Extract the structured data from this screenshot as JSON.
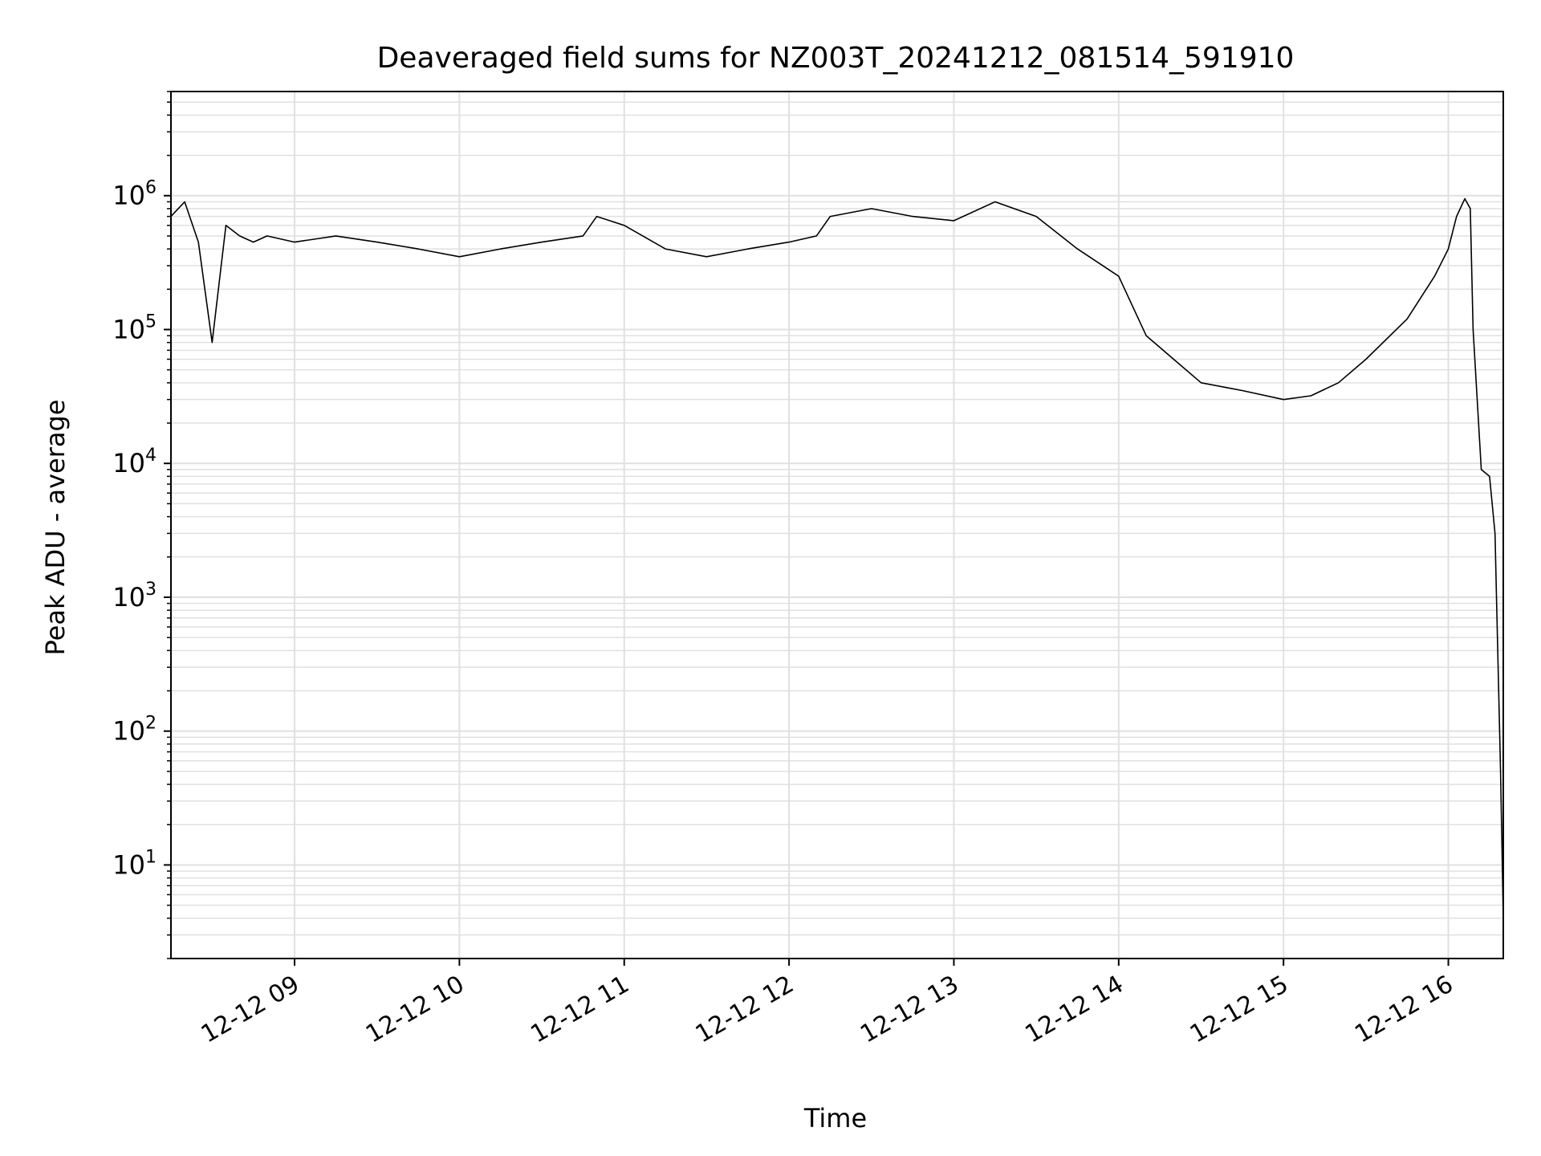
{
  "chart_data": {
    "type": "line",
    "title": "Deaveraged field sums for NZ003T_20241212_081514_591910",
    "xlabel": "Time",
    "ylabel": "Peak ADU - average",
    "yscale": "log",
    "ylim": [
      2,
      6000000
    ],
    "xlim": [
      "2024-12-12 08:15",
      "2024-12-12 16:20"
    ],
    "grid": true,
    "line_color": "#000000",
    "grid_color": "#e0e0e0",
    "x_ticks": [
      "12-12 09",
      "12-12 10",
      "12-12 11",
      "12-12 12",
      "12-12 13",
      "12-12 14",
      "12-12 15",
      "12-12 16"
    ],
    "y_ticks": [
      {
        "value": 10,
        "base": "10",
        "exp": "1"
      },
      {
        "value": 100,
        "base": "10",
        "exp": "2"
      },
      {
        "value": 1000,
        "base": "10",
        "exp": "3"
      },
      {
        "value": 10000,
        "base": "10",
        "exp": "4"
      },
      {
        "value": 100000,
        "base": "10",
        "exp": "5"
      },
      {
        "value": 1000000,
        "base": "10",
        "exp": "6"
      }
    ],
    "series": [
      {
        "x": [
          "2024-12-12 08:15",
          "2024-12-12 08:20",
          "2024-12-12 08:25",
          "2024-12-12 08:30",
          "2024-12-12 08:35",
          "2024-12-12 08:40",
          "2024-12-12 08:45",
          "2024-12-12 08:50",
          "2024-12-12 09:00",
          "2024-12-12 09:15",
          "2024-12-12 09:30",
          "2024-12-12 09:45",
          "2024-12-12 10:00",
          "2024-12-12 10:15",
          "2024-12-12 10:30",
          "2024-12-12 10:45",
          "2024-12-12 10:50",
          "2024-12-12 11:00",
          "2024-12-12 11:15",
          "2024-12-12 11:30",
          "2024-12-12 11:45",
          "2024-12-12 12:00",
          "2024-12-12 12:10",
          "2024-12-12 12:15",
          "2024-12-12 12:30",
          "2024-12-12 12:45",
          "2024-12-12 13:00",
          "2024-12-12 13:15",
          "2024-12-12 13:30",
          "2024-12-12 13:45",
          "2024-12-12 14:00",
          "2024-12-12 14:10",
          "2024-12-12 14:20",
          "2024-12-12 14:30",
          "2024-12-12 14:45",
          "2024-12-12 15:00",
          "2024-12-12 15:10",
          "2024-12-12 15:20",
          "2024-12-12 15:30",
          "2024-12-12 15:45",
          "2024-12-12 15:55",
          "2024-12-12 16:00",
          "2024-12-12 16:03",
          "2024-12-12 16:06",
          "2024-12-12 16:08",
          "2024-12-12 16:09",
          "2024-12-12 16:12",
          "2024-12-12 16:15",
          "2024-12-12 16:17",
          "2024-12-12 16:19",
          "2024-12-12 16:20"
        ],
        "y": [
          700000,
          900000,
          450000,
          80000,
          600000,
          500000,
          450000,
          500000,
          450000,
          500000,
          450000,
          400000,
          350000,
          400000,
          450000,
          500000,
          700000,
          600000,
          400000,
          350000,
          400000,
          450000,
          500000,
          700000,
          800000,
          700000,
          650000,
          900000,
          700000,
          400000,
          250000,
          90000,
          60000,
          40000,
          35000,
          30000,
          32000,
          40000,
          60000,
          120000,
          250000,
          400000,
          700000,
          950000,
          800000,
          100000,
          9000,
          8000,
          3000,
          50,
          4
        ]
      }
    ]
  }
}
